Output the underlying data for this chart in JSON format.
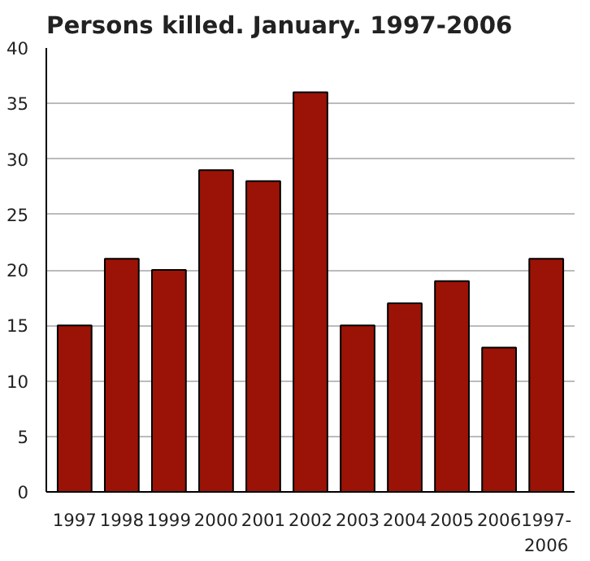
{
  "chart_data": {
    "type": "bar",
    "title": "Persons killed. January. 1997-2006",
    "categories": [
      "1997",
      "1998",
      "1999",
      "2000",
      "2001",
      "2002",
      "2003",
      "2004",
      "2005",
      "2006",
      "1997-\n2006"
    ],
    "values": [
      15,
      21,
      20,
      29,
      28,
      36,
      15,
      17,
      19,
      13,
      21
    ],
    "color": "#9b1306",
    "ylim": [
      0,
      40
    ],
    "yticks": [
      0,
      5,
      10,
      15,
      20,
      25,
      30,
      35,
      40
    ],
    "grid": "y"
  }
}
